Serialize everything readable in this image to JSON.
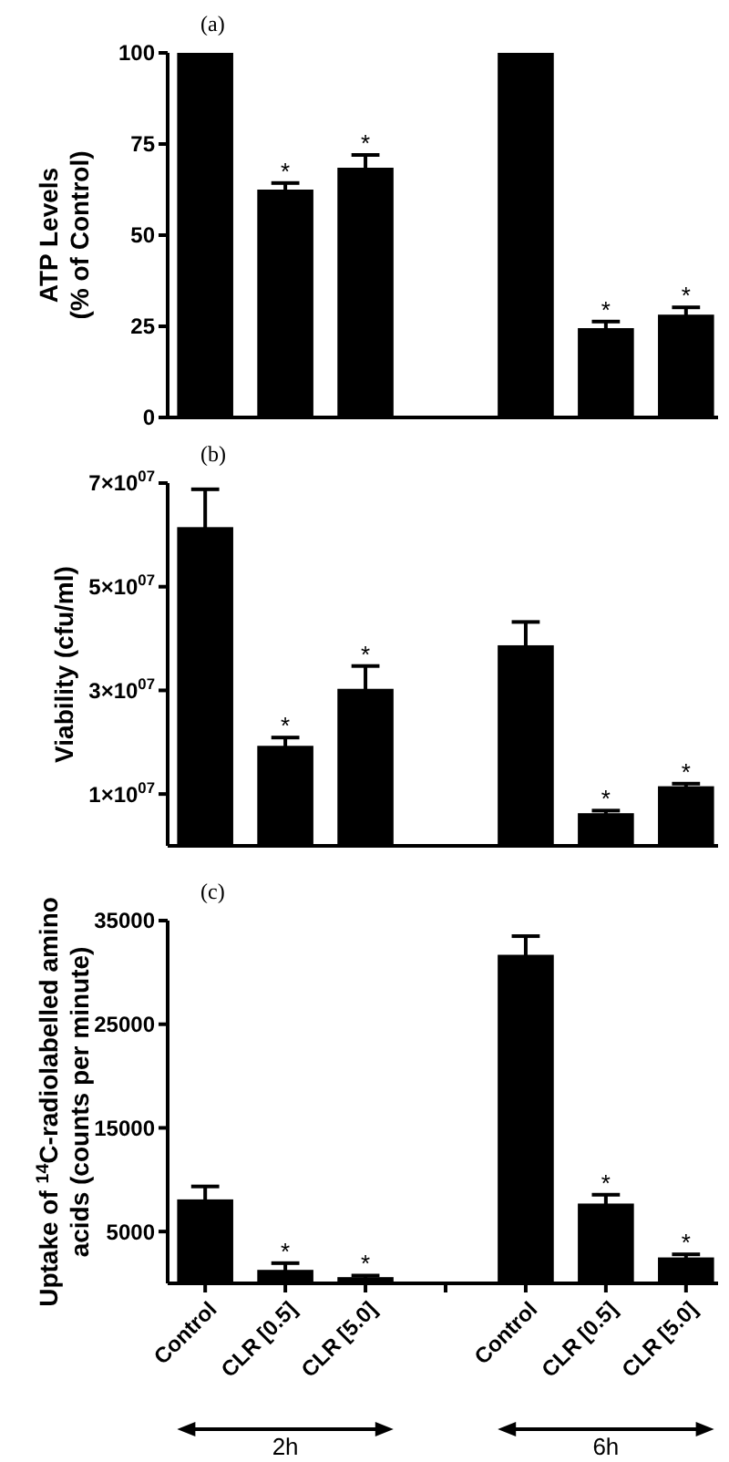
{
  "chart_data": [
    {
      "type": "bar",
      "title": "(a)",
      "ylabel": "ATP Levels\n(% of Control)",
      "categories": [
        null,
        null,
        null,
        null,
        null,
        null,
        null
      ],
      "values": [
        100,
        62.5,
        68.5,
        null,
        100,
        24.5,
        28.2
      ],
      "errors": [
        null,
        1.8,
        3.5,
        null,
        null,
        1.8,
        2
      ],
      "value_labels": [
        null,
        "*",
        "*",
        null,
        null,
        "*",
        "*"
      ],
      "color": "#000000",
      "ylim": [
        0,
        100
      ],
      "yticks": [
        0,
        25,
        50,
        75,
        100
      ],
      "tick_labels": "y",
      "grid": false
    },
    {
      "type": "bar",
      "title": "(b)",
      "ylabel": "Viability (cfu/ml)",
      "categories": [
        null,
        null,
        null,
        null,
        null,
        null,
        null
      ],
      "values": [
        61500000,
        19300000,
        30300000,
        null,
        38700000,
        6300000,
        11500000
      ],
      "errors": [
        7300000,
        1600000,
        4400000,
        null,
        4500000,
        500000,
        500000
      ],
      "value_labels": [
        null,
        "*",
        "*",
        null,
        null,
        "*",
        "*"
      ],
      "color": "#000000",
      "ylim": [
        0,
        70000000
      ],
      "yticks": [
        {
          "value": 10000000,
          "label": "1×10$^{07}$"
        },
        {
          "value": 30000000,
          "label": "3×10$^{07}$"
        },
        {
          "value": 50000000,
          "label": "5×10$^{07}$"
        },
        {
          "value": 70000000,
          "label": "7×10$^{07}$"
        }
      ],
      "tick_labels": "y",
      "grid": false
    },
    {
      "type": "bar",
      "title": "(c)",
      "ylabel": "Uptake of $^{14}$C-radiolabelled amino\nacids (counts per minute)",
      "categories": [
        "Control",
        "CLR [0.5]",
        "CLR [5.0]",
        null,
        "Control",
        "CLR [0.5]",
        "CLR [5.0]"
      ],
      "values": [
        8100,
        1300,
        600,
        null,
        31700,
        7700,
        2500
      ],
      "errors": [
        1250,
        650,
        150,
        null,
        1800,
        850,
        300
      ],
      "value_labels": [
        null,
        "*",
        "*",
        null,
        null,
        "*",
        "*"
      ],
      "color": "#000000",
      "ylim": [
        0,
        35000
      ],
      "yticks": [
        5000,
        15000,
        25000,
        35000
      ],
      "grid": false,
      "annotations": [
        "2h",
        "6h"
      ]
    }
  ]
}
